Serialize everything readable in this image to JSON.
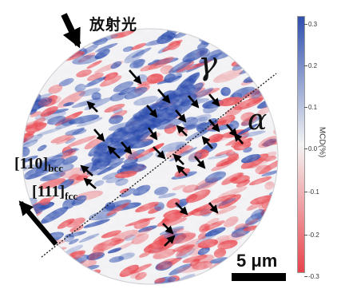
{
  "labels": {
    "radiation": "放射光",
    "gamma": "γ",
    "alpha": "α",
    "dir_bcc_main": "[110]",
    "dir_bcc_sub": "bcc",
    "dir_fcc_main": "[111]",
    "dir_fcc_sub": "fcc",
    "scale": "5 μm"
  },
  "colorbar": {
    "title": "MCD(%)",
    "ticks": [
      "0.3",
      "0.2",
      "0.1",
      "0.0",
      "-0.1",
      "-0.2",
      "-0.3"
    ],
    "colors": {
      "positive": "#2f4fae",
      "zero": "#f4f4f4",
      "negative": "#e8434b"
    }
  },
  "colors": {
    "arrow": "#000000",
    "line": "#222222"
  }
}
